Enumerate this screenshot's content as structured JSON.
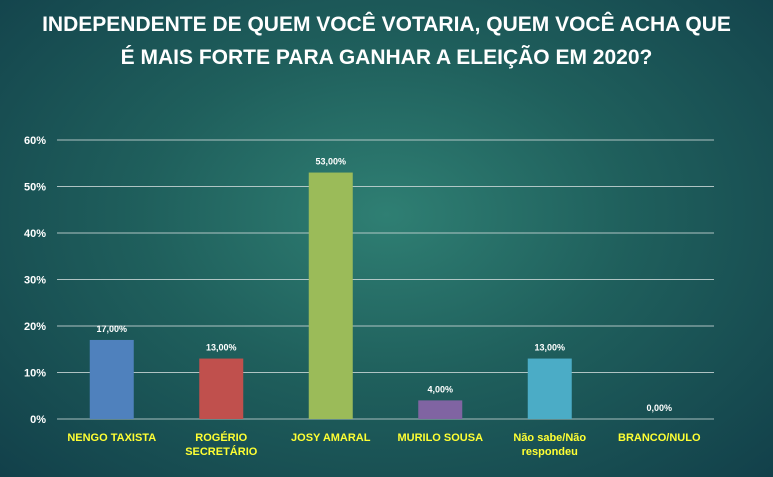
{
  "chart_data": {
    "type": "bar",
    "title": "INDEPENDENTE DE QUEM VOCÊ VOTARIA, QUEM VOCÊ ACHA QUE É MAIS FORTE PARA GANHAR A ELEIÇÃO EM 2020?",
    "categories": [
      [
        "NENGO TAXISTA"
      ],
      [
        "ROGÉRIO",
        "SECRETÁRIO"
      ],
      [
        "JOSY AMARAL"
      ],
      [
        "MURILO SOUSA"
      ],
      [
        "Não sabe/Não",
        "respondeu"
      ],
      [
        "BRANCO/NULO"
      ]
    ],
    "values": [
      17,
      13,
      53,
      4,
      13,
      0
    ],
    "data_labels": [
      "17,00%",
      "13,00%",
      "53,00%",
      "4,00%",
      "13,00%",
      "0,00%"
    ],
    "colors": [
      "#4f81bd",
      "#c0504d",
      "#9bbb59",
      "#8064a2",
      "#4bacc6",
      "#f79646"
    ],
    "ylim": [
      0,
      60
    ],
    "yticks": [
      0,
      10,
      20,
      30,
      40,
      50,
      60
    ],
    "ytick_labels": [
      "0%",
      "10%",
      "20%",
      "30%",
      "40%",
      "50%",
      "60%"
    ],
    "grid": true,
    "xlabel": "",
    "ylabel": ""
  }
}
